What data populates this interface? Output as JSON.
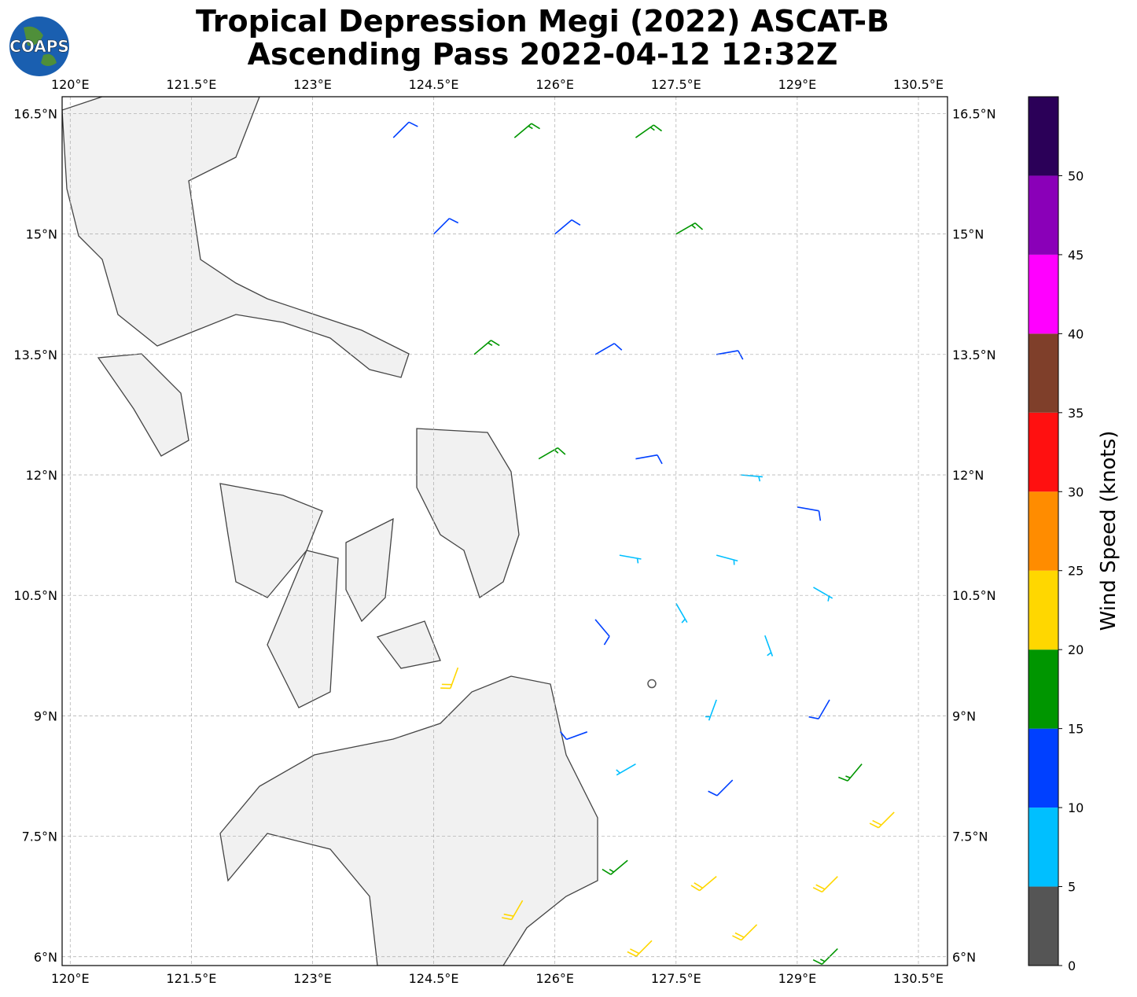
{
  "header": {
    "title_lines": [
      "Tropical Depression Megi (2022) ASCAT-B",
      "Ascending Pass 2022-04-12 12:32Z"
    ],
    "logo": "COAPS"
  },
  "map": {
    "xlim": [
      119.9,
      130.86
    ],
    "ylim": [
      5.89,
      16.71
    ],
    "xticks": [
      {
        "value": 120,
        "label": "120°E"
      },
      {
        "value": 121.5,
        "label": "121.5°E"
      },
      {
        "value": 123,
        "label": "123°E"
      },
      {
        "value": 124.5,
        "label": "124.5°E"
      },
      {
        "value": 126,
        "label": "126°E"
      },
      {
        "value": 127.5,
        "label": "127.5°E"
      },
      {
        "value": 129,
        "label": "129°E"
      },
      {
        "value": 130.5,
        "label": "130.5°E"
      }
    ],
    "yticks": [
      {
        "value": 6,
        "label": "6°N"
      },
      {
        "value": 7.5,
        "label": "7.5°N"
      },
      {
        "value": 9,
        "label": "9°N"
      },
      {
        "value": 10.5,
        "label": "10.5°N"
      },
      {
        "value": 12,
        "label": "12°N"
      },
      {
        "value": 13.5,
        "label": "13.5°N"
      },
      {
        "value": 15,
        "label": "15°N"
      },
      {
        "value": 16.5,
        "label": "16.5°N"
      }
    ],
    "grid": true
  },
  "colorbar": {
    "label": "Wind Speed (knots)",
    "bounds": [
      0,
      5,
      10,
      15,
      20,
      25,
      30,
      35,
      40,
      45,
      50,
      55
    ],
    "colors": [
      "#555555",
      "#00bfff",
      "#0040ff",
      "#009600",
      "#ffd700",
      "#ff8c00",
      "#ff1010",
      "#7f3f2a",
      "#ff00ff",
      "#8a00b8",
      "#2b0058"
    ],
    "ticks": [
      0,
      5,
      10,
      15,
      20,
      25,
      30,
      35,
      40,
      45,
      50
    ]
  },
  "wind_barbs": {
    "lon": [
      124.0,
      125.5,
      127.0,
      124.5,
      126.0,
      127.5,
      125.0,
      126.5,
      128.0,
      125.8,
      127.0,
      128.3,
      129.0,
      126.8,
      128.0,
      129.2,
      126.5,
      127.5,
      128.6,
      127.2,
      128.0,
      129.4,
      126.4,
      127.0,
      128.2,
      129.8,
      126.9,
      128.0,
      129.5,
      130.2,
      127.2,
      128.5,
      129.5,
      124.8,
      125.6
    ],
    "lat": [
      16.2,
      16.2,
      16.2,
      15.0,
      15.0,
      15.0,
      13.5,
      13.5,
      13.5,
      12.2,
      12.2,
      12.0,
      11.6,
      11.0,
      11.0,
      10.6,
      10.2,
      10.4,
      10.0,
      9.4,
      9.2,
      9.2,
      8.8,
      8.4,
      8.2,
      8.4,
      7.2,
      7.0,
      7.0,
      7.8,
      6.2,
      6.4,
      6.1,
      9.6,
      6.7
    ],
    "speed": [
      12,
      17,
      17,
      12,
      13,
      16,
      17,
      12,
      13,
      17,
      12,
      8,
      12,
      8,
      7,
      8,
      14,
      6,
      7,
      3,
      5,
      12,
      12,
      7,
      13,
      17,
      17,
      21,
      22,
      22,
      22,
      23,
      17,
      22,
      23
    ],
    "direction": [
      45,
      50,
      55,
      45,
      50,
      60,
      50,
      60,
      80,
      60,
      80,
      95,
      100,
      100,
      105,
      120,
      140,
      150,
      160,
      200,
      200,
      210,
      250,
      240,
      225,
      220,
      230,
      230,
      225,
      225,
      225,
      225,
      225,
      200,
      210
    ]
  }
}
